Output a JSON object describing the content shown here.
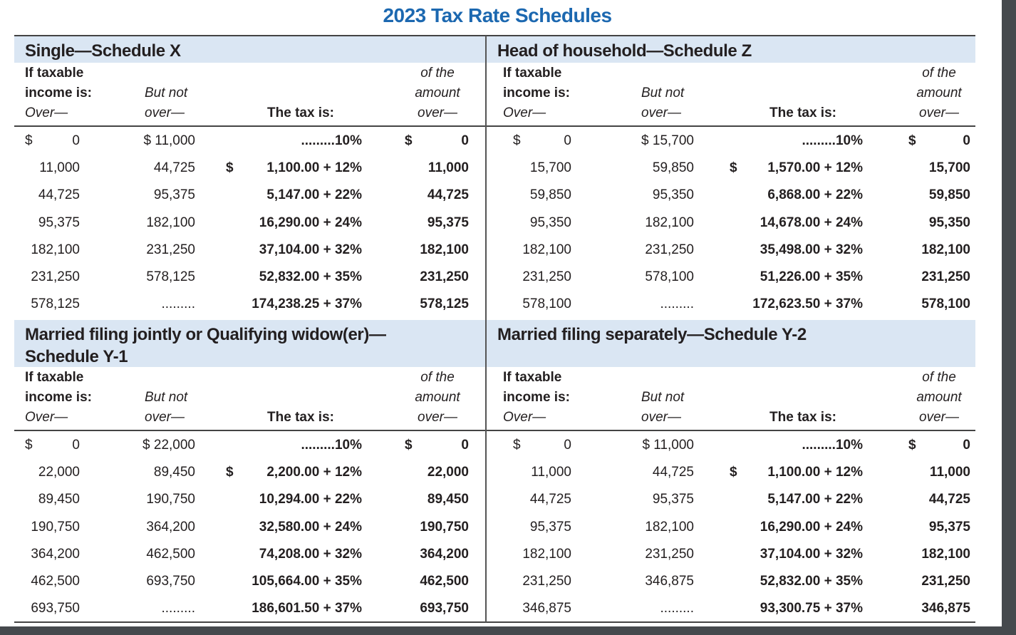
{
  "title": "2023 Tax Rate Schedules",
  "currency": "$",
  "col_headers": {
    "over_1": "If taxable",
    "over_2": "income is:",
    "over_3": "Over—",
    "but_not_1": "But not",
    "but_not_2": "over—",
    "tax": "The tax is:",
    "amount_1": "of the",
    "amount_2": "amount",
    "amount_3": "over—"
  },
  "colors": {
    "title": "#1c68b0",
    "header_band": "#dae6f3"
  },
  "schedules": [
    {
      "name": "Single—Schedule X",
      "rows": [
        [
          "0",
          "$ 11,000",
          ".........10%",
          "0"
        ],
        [
          "11,000",
          "44,725",
          "1,100.00 + 12%",
          "11,000"
        ],
        [
          "44,725",
          "95,375",
          "5,147.00 + 22%",
          "44,725"
        ],
        [
          "95,375",
          "182,100",
          "16,290.00 + 24%",
          "95,375"
        ],
        [
          "182,100",
          "231,250",
          "37,104.00 + 32%",
          "182,100"
        ],
        [
          "231,250",
          "578,125",
          "52,832.00 + 35%",
          "231,250"
        ],
        [
          "578,125",
          ".........",
          "174,238.25 + 37%",
          "578,125"
        ]
      ]
    },
    {
      "name": "Head of household—Schedule Z",
      "rows": [
        [
          "0",
          "$ 15,700",
          ".........10%",
          "0"
        ],
        [
          "15,700",
          "59,850",
          "1,570.00 + 12%",
          "15,700"
        ],
        [
          "59,850",
          "95,350",
          "6,868.00 + 22%",
          "59,850"
        ],
        [
          "95,350",
          "182,100",
          "14,678.00 + 24%",
          "95,350"
        ],
        [
          "182,100",
          "231,250",
          "35,498.00 + 32%",
          "182,100"
        ],
        [
          "231,250",
          "578,100",
          "51,226.00 + 35%",
          "231,250"
        ],
        [
          "578,100",
          ".........",
          "172,623.50 + 37%",
          "578,100"
        ]
      ]
    },
    {
      "name": "Married filing jointly or Qualifying widow(er)—",
      "name_line2": "Schedule Y-1",
      "rows": [
        [
          "0",
          "$ 22,000",
          ".........10%",
          "0"
        ],
        [
          "22,000",
          "89,450",
          "2,200.00 + 12%",
          "22,000"
        ],
        [
          "89,450",
          "190,750",
          "10,294.00 + 22%",
          "89,450"
        ],
        [
          "190,750",
          "364,200",
          "32,580.00 + 24%",
          "190,750"
        ],
        [
          "364,200",
          "462,500",
          "74,208.00 + 32%",
          "364,200"
        ],
        [
          "462,500",
          "693,750",
          "105,664.00 + 35%",
          "462,500"
        ],
        [
          "693,750",
          ".........",
          "186,601.50 + 37%",
          "693,750"
        ]
      ]
    },
    {
      "name": "Married filing separately—Schedule Y-2",
      "rows": [
        [
          "0",
          "$ 11,000",
          ".........10%",
          "0"
        ],
        [
          "11,000",
          "44,725",
          "1,100.00 + 12%",
          "11,000"
        ],
        [
          "44,725",
          "95,375",
          "5,147.00 + 22%",
          "44,725"
        ],
        [
          "95,375",
          "182,100",
          "16,290.00 + 24%",
          "95,375"
        ],
        [
          "182,100",
          "231,250",
          "37,104.00 + 32%",
          "182,100"
        ],
        [
          "231,250",
          "346,875",
          "52,832.00 + 35%",
          "231,250"
        ],
        [
          "346,875",
          ".........",
          "93,300.75 + 37%",
          "346,875"
        ]
      ]
    }
  ]
}
